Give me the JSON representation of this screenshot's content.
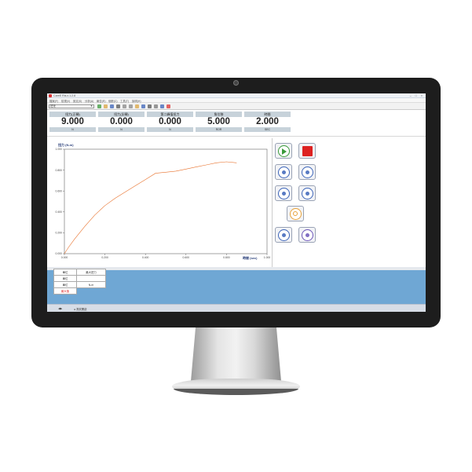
{
  "window": {
    "title": "CareE Ris.x.1.2.8",
    "window_buttons": "– □ ×"
  },
  "menu": [
    "檔案(F)",
    "檢視(V)",
    "設定(S)",
    "分析(A)",
    "報告(R)",
    "個數(C)",
    "工具(T)",
    "說明(H)"
  ],
  "toolbar": {
    "preset": "扭矩",
    "icons": [
      "play-icon",
      "folder-open-icon",
      "save-icon",
      "print-icon",
      "copy-icon",
      "paste-icon",
      "chart-icon",
      "table-icon",
      "export-icon",
      "settings-icon",
      "zoom-icon",
      "help-icon"
    ]
  },
  "readouts": [
    {
      "label": "扭力(正轉)",
      "value": "9.000",
      "unit": "N"
    },
    {
      "label": "扭力(反轉)",
      "value": "0.000",
      "unit": "N"
    },
    {
      "label": "第二峰值扭力",
      "value": "0.000",
      "unit": "N"
    },
    {
      "label": "角位移",
      "value": "5.000",
      "unit": "ROR"
    },
    {
      "label": "時間",
      "value": "2.000",
      "unit": "SEC"
    }
  ],
  "chart_data": {
    "type": "line",
    "title": "扭力 (N-m)",
    "xlabel": "時間 (sec)",
    "ylabel": "扭力 (N-m)",
    "xlim": [
      0,
      1
    ],
    "ylim": [
      0,
      1
    ],
    "xticks": [
      "0.000",
      "0.200",
      "0.400",
      "0.600",
      "0.800",
      "1.000"
    ],
    "yticks": [
      "0.000",
      "0.200",
      "0.400",
      "0.600",
      "0.800",
      "1.000"
    ],
    "grid": false,
    "series": [
      {
        "color": "#e8702a",
        "x": [
          0.0,
          0.02,
          0.05,
          0.1,
          0.15,
          0.2,
          0.25,
          0.3,
          0.35,
          0.4,
          0.45,
          0.5,
          0.55,
          0.6,
          0.65,
          0.7,
          0.75,
          0.8,
          0.85
        ],
        "y": [
          0.0,
          0.06,
          0.14,
          0.26,
          0.37,
          0.46,
          0.53,
          0.59,
          0.65,
          0.71,
          0.77,
          0.78,
          0.79,
          0.81,
          0.83,
          0.85,
          0.87,
          0.88,
          0.87
        ]
      }
    ]
  },
  "controls": [
    {
      "name": "start-button",
      "icon": "play-icon",
      "color": "#3a9a3a"
    },
    {
      "name": "stop-button",
      "icon": "stop-icon",
      "color": "#dd2222"
    },
    {
      "name": "cw-fast-button",
      "icon": "rotate-cw-fast-icon",
      "color": "#3b63b8"
    },
    {
      "name": "cw-slow-button",
      "icon": "rotate-cw-slow-icon",
      "color": "#3b63b8"
    },
    {
      "name": "ccw-fast-button",
      "icon": "rotate-ccw-fast-icon",
      "color": "#3b63b8"
    },
    {
      "name": "ccw-slow-button",
      "icon": "rotate-ccw-slow-icon",
      "color": "#3b63b8"
    },
    {
      "name": "reset-button",
      "icon": "power-icon",
      "color": "#e8a23a"
    },
    {
      "name": "zero-button",
      "icon": "crosshair-icon",
      "color": "#3b63b8"
    },
    {
      "name": "settings-button",
      "icon": "target-icon",
      "color": "#6b55b8"
    }
  ],
  "info_table": [
    {
      "label": "單位",
      "value": "最大扭力"
    },
    {
      "label": "單位",
      "value": ""
    },
    {
      "label": "單位",
      "value": "N-m"
    },
    {
      "label": "最大值",
      "value": ""
    }
  ],
  "status": {
    "left": "◀▶",
    "text": "● 測試開啟"
  }
}
